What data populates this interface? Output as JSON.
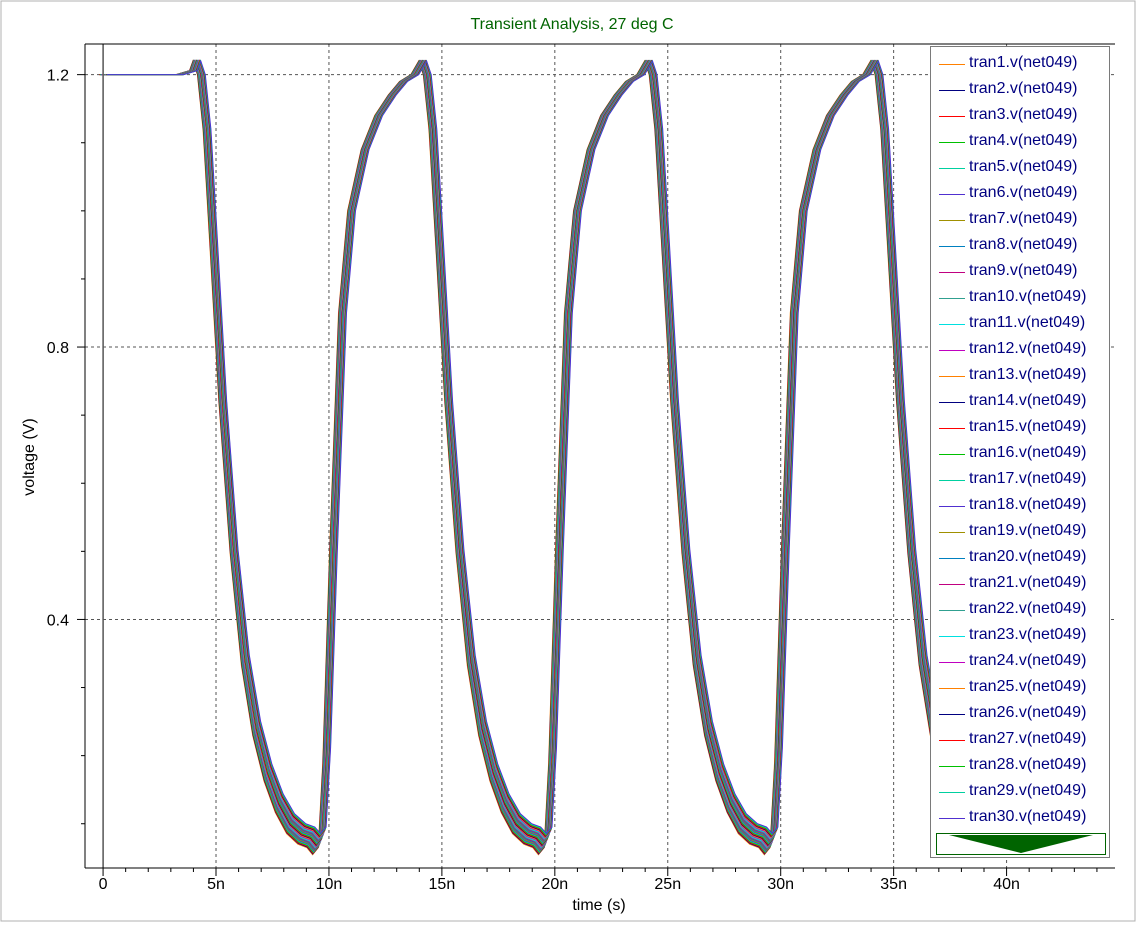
{
  "chart_data": {
    "type": "line",
    "title": "Transient Analysis, 27 deg C",
    "xlabel": "time (s)",
    "ylabel": "voltage (V)",
    "xlim": [
      -0.8,
      44.8
    ],
    "ylim": [
      0.035,
      1.245
    ],
    "x_ticks": [
      {
        "value": 0,
        "label": "0"
      },
      {
        "value": 5,
        "label": "5n"
      },
      {
        "value": 10,
        "label": "10n"
      },
      {
        "value": 15,
        "label": "15n"
      },
      {
        "value": 20,
        "label": "20n"
      },
      {
        "value": 25,
        "label": "25n"
      },
      {
        "value": 30,
        "label": "30n"
      },
      {
        "value": 35,
        "label": "35n"
      },
      {
        "value": 40,
        "label": "40n"
      }
    ],
    "y_ticks": [
      {
        "value": 0.4,
        "label": "0.4"
      },
      {
        "value": 0.8,
        "label": "0.8"
      },
      {
        "value": 1.2,
        "label": "1.2"
      }
    ],
    "x_unit": "ns",
    "grid": true,
    "legend_position": "right",
    "waveform": {
      "x": [
        0,
        3.4,
        4.0,
        4.15,
        4.35,
        4.6,
        4.9,
        5.3,
        5.8,
        6.3,
        6.8,
        7.3,
        7.8,
        8.3,
        8.8,
        9.2,
        9.45,
        9.7,
        9.9,
        10.2,
        10.6,
        11.0,
        11.6,
        12.2,
        12.8,
        13.3,
        13.8,
        14.15,
        14.35,
        14.6,
        14.9,
        15.3,
        15.8,
        16.3,
        16.8,
        17.3,
        17.8,
        18.3,
        18.8,
        19.2,
        19.45,
        19.7,
        19.9,
        20.2,
        20.6,
        21.0,
        21.6,
        22.2,
        22.8,
        23.3,
        23.8,
        24.15,
        24.35,
        24.6,
        24.9,
        25.3,
        25.8,
        26.3,
        26.8,
        27.3,
        27.8,
        28.3,
        28.8,
        29.2,
        29.45,
        29.7,
        29.9,
        30.2,
        30.6,
        31.0,
        31.6,
        32.2,
        32.8,
        33.3,
        33.8,
        34.15,
        34.35,
        34.6,
        34.9,
        35.3,
        35.8,
        36.3,
        36.8
      ],
      "y": [
        1.2,
        1.2,
        1.206,
        1.22,
        1.2,
        1.12,
        0.95,
        0.72,
        0.5,
        0.34,
        0.24,
        0.175,
        0.13,
        0.1,
        0.085,
        0.08,
        0.07,
        0.08,
        0.2,
        0.5,
        0.85,
        1.0,
        1.09,
        1.14,
        1.17,
        1.19,
        1.2,
        1.22,
        1.2,
        1.12,
        0.95,
        0.72,
        0.5,
        0.34,
        0.24,
        0.175,
        0.13,
        0.1,
        0.085,
        0.08,
        0.07,
        0.08,
        0.2,
        0.5,
        0.85,
        1.0,
        1.09,
        1.14,
        1.17,
        1.19,
        1.2,
        1.22,
        1.2,
        1.12,
        0.95,
        0.72,
        0.5,
        0.34,
        0.24,
        0.175,
        0.13,
        0.1,
        0.085,
        0.08,
        0.07,
        0.08,
        0.2,
        0.5,
        0.85,
        1.0,
        1.09,
        1.14,
        1.17,
        1.19,
        1.2,
        1.22,
        1.2,
        1.12,
        0.95,
        0.72,
        0.5,
        0.34,
        0.24
      ],
      "note_variation_ns": 0.35
    },
    "series": [
      {
        "name": "tran1.v(net049)",
        "color": "#ff8000"
      },
      {
        "name": "tran2.v(net049)",
        "color": "#000080"
      },
      {
        "name": "tran3.v(net049)",
        "color": "#ff0000"
      },
      {
        "name": "tran4.v(net049)",
        "color": "#00c000"
      },
      {
        "name": "tran5.v(net049)",
        "color": "#00d0a0"
      },
      {
        "name": "tran6.v(net049)",
        "color": "#5030d0"
      },
      {
        "name": "tran7.v(net049)",
        "color": "#a09000"
      },
      {
        "name": "tran8.v(net049)",
        "color": "#0080c0"
      },
      {
        "name": "tran9.v(net049)",
        "color": "#c00080"
      },
      {
        "name": "tran10.v(net049)",
        "color": "#30a090"
      },
      {
        "name": "tran11.v(net049)",
        "color": "#00e0e0"
      },
      {
        "name": "tran12.v(net049)",
        "color": "#c000c0"
      },
      {
        "name": "tran13.v(net049)",
        "color": "#ff8000"
      },
      {
        "name": "tran14.v(net049)",
        "color": "#000080"
      },
      {
        "name": "tran15.v(net049)",
        "color": "#ff0000"
      },
      {
        "name": "tran16.v(net049)",
        "color": "#00c000"
      },
      {
        "name": "tran17.v(net049)",
        "color": "#00d0a0"
      },
      {
        "name": "tran18.v(net049)",
        "color": "#5030d0"
      },
      {
        "name": "tran19.v(net049)",
        "color": "#a09000"
      },
      {
        "name": "tran20.v(net049)",
        "color": "#0080c0"
      },
      {
        "name": "tran21.v(net049)",
        "color": "#c00080"
      },
      {
        "name": "tran22.v(net049)",
        "color": "#30a090"
      },
      {
        "name": "tran23.v(net049)",
        "color": "#00e0e0"
      },
      {
        "name": "tran24.v(net049)",
        "color": "#c000c0"
      },
      {
        "name": "tran25.v(net049)",
        "color": "#ff8000"
      },
      {
        "name": "tran26.v(net049)",
        "color": "#000080"
      },
      {
        "name": "tran27.v(net049)",
        "color": "#ff0000"
      },
      {
        "name": "tran28.v(net049)",
        "color": "#00c000"
      },
      {
        "name": "tran29.v(net049)",
        "color": "#00d0a0"
      },
      {
        "name": "tran30.v(net049)",
        "color": "#5030d0"
      }
    ]
  },
  "colors": {
    "title": "#006400",
    "legend_text": "#000080",
    "grid": "#555555",
    "scroll_arrow": "#006400"
  },
  "legend": {
    "scroll_icon": "down-arrow-icon"
  }
}
